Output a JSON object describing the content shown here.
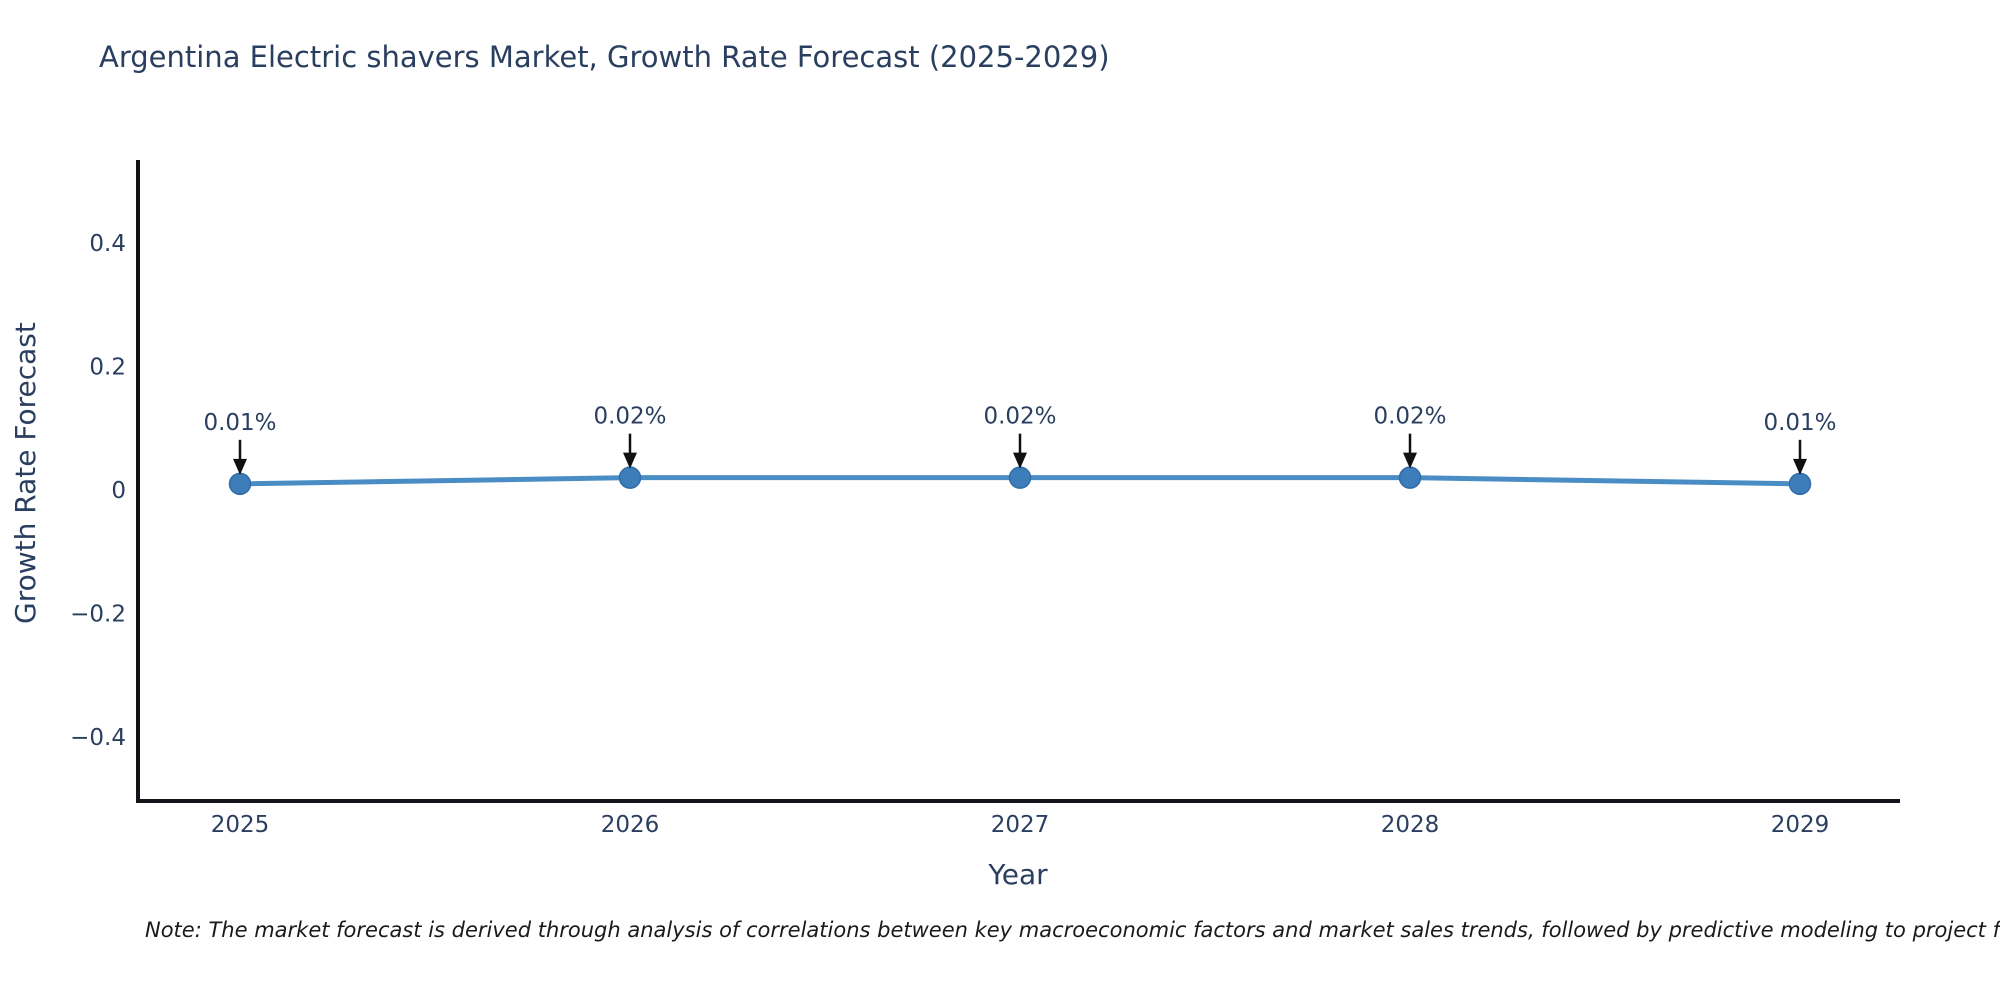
{
  "footnote": {
    "text": "Note: The market forecast is derived through analysis of correlations between key macroeconomic factors and market sales trends, followed by predictive modeling to project future sales."
  },
  "colors": {
    "text": "#2a3f5f",
    "axis": "#111418",
    "line": "#4a8cc4",
    "marker": "#3d7dba",
    "marker_edge": "#306ca8",
    "arrow": "#111111",
    "background": "#ffffff"
  },
  "chart_data": {
    "type": "line",
    "title": "Argentina Electric shavers Market, Growth Rate Forecast (2025-2029)",
    "xlabel": "Year",
    "ylabel": "Growth Rate Forecast",
    "x": [
      2025,
      2026,
      2027,
      2028,
      2029
    ],
    "series": [
      {
        "name": "Growth Rate Forecast",
        "values": [
          0.01,
          0.02,
          0.02,
          0.02,
          0.01
        ],
        "point_labels": [
          "0.01%",
          "0.02%",
          "0.02%",
          "0.02%",
          "0.01%"
        ]
      }
    ],
    "xticks": {
      "values": [
        2025,
        2026,
        2027,
        2028,
        2029
      ],
      "labels": [
        "2025",
        "2026",
        "2027",
        "2028",
        "2029"
      ]
    },
    "yticks": {
      "values": [
        0.4,
        0.2,
        0,
        -0.2,
        -0.4
      ],
      "labels": [
        "0.4",
        "0.2",
        "0",
        "−0.2",
        "−0.4"
      ]
    },
    "ylim": [
      -0.5,
      0.54
    ],
    "grid": false,
    "legend": false,
    "annotations_have_arrows": true
  }
}
